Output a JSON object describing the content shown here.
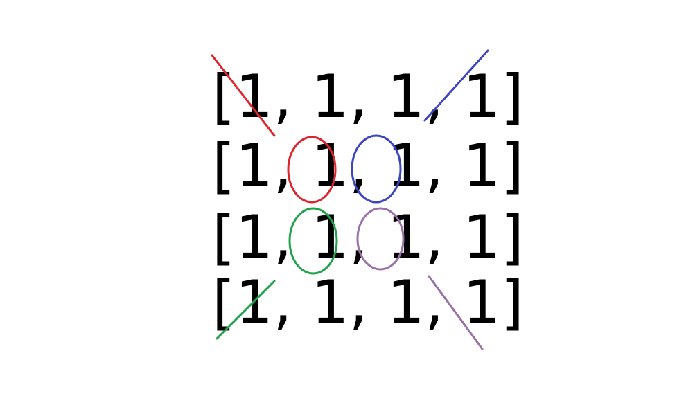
{
  "matrix": {
    "rows": [
      "[1, 1, 1, 1]",
      "[1, 1, 1, 1]",
      "[1, 1, 1, 1]",
      "[1, 1, 1, 1]"
    ]
  },
  "colors": {
    "text": "#000000",
    "red": "#e0242c",
    "blue": "#3b45c4",
    "green": "#1fa34a",
    "purple": "#9a70a8"
  },
  "annotations": {
    "crossed_out_corners": [
      {
        "row": 0,
        "col": 0,
        "color": "red"
      },
      {
        "row": 0,
        "col": 3,
        "color": "blue"
      },
      {
        "row": 3,
        "col": 0,
        "color": "green"
      },
      {
        "row": 3,
        "col": 3,
        "color": "purple"
      }
    ],
    "circled_interior": [
      {
        "row": 1,
        "col": 1,
        "color": "red"
      },
      {
        "row": 1,
        "col": 2,
        "color": "blue"
      },
      {
        "row": 2,
        "col": 1,
        "color": "green"
      },
      {
        "row": 2,
        "col": 2,
        "color": "purple"
      }
    ]
  }
}
